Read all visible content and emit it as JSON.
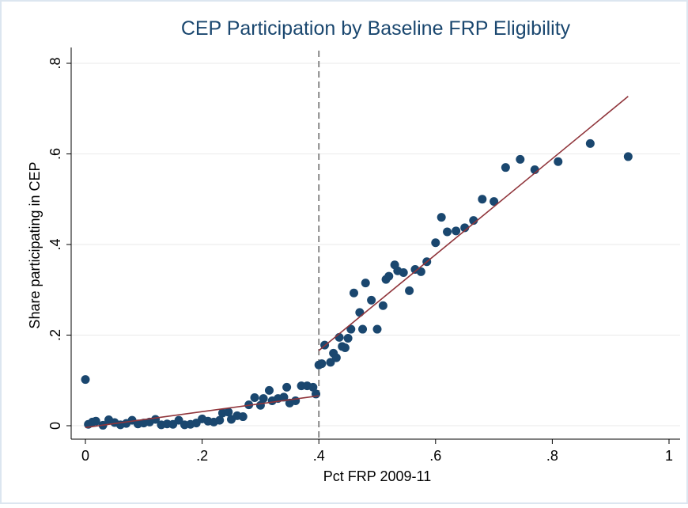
{
  "chart_data": {
    "type": "scatter",
    "title": "CEP Participation by Baseline FRP Eligibility",
    "x_label": "Pct FRP 2009-11",
    "y_label": "Share participating in CEP",
    "xlim": [
      0,
      1
    ],
    "ylim": [
      0,
      0.8
    ],
    "xticks": [
      0,
      {
        "value": 0.2,
        "label": ".2"
      },
      {
        "value": 0.4,
        "label": ".4"
      },
      {
        "value": 0.6,
        "label": ".6"
      },
      {
        "value": 0.8,
        "label": ".8"
      },
      1
    ],
    "yticks": [
      0,
      {
        "value": 0.2,
        "label": ".2"
      },
      {
        "value": 0.4,
        "label": ".4"
      },
      {
        "value": 0.6,
        "label": ".6"
      },
      {
        "value": 0.8,
        "label": ".8"
      }
    ],
    "grid": true,
    "reference_line_x": 0.4,
    "series": [
      {
        "color": "#1a476f",
        "x": [
          0.0,
          0.005,
          0.012,
          0.018,
          0.03,
          0.04,
          0.05,
          0.06,
          0.07,
          0.08,
          0.09,
          0.1,
          0.11,
          0.12,
          0.13,
          0.14,
          0.15,
          0.16,
          0.17,
          0.18,
          0.19,
          0.2,
          0.21,
          0.22,
          0.23,
          0.235,
          0.245,
          0.25,
          0.26,
          0.27,
          0.28,
          0.29,
          0.3,
          0.305,
          0.315,
          0.32,
          0.33,
          0.34,
          0.345,
          0.35,
          0.36,
          0.37,
          0.38,
          0.39,
          0.395,
          0.4,
          0.405,
          0.41,
          0.42,
          0.425,
          0.43,
          0.435,
          0.44,
          0.445,
          0.45,
          0.455,
          0.46,
          0.47,
          0.475,
          0.48,
          0.49,
          0.5,
          0.51,
          0.515,
          0.52,
          0.53,
          0.535,
          0.545,
          0.555,
          0.565,
          0.575,
          0.585,
          0.6,
          0.61,
          0.62,
          0.635,
          0.65,
          0.665,
          0.68,
          0.7,
          0.72,
          0.745,
          0.77,
          0.81,
          0.865,
          0.93
        ],
        "values": [
          0.102,
          0.003,
          0.008,
          0.01,
          0.001,
          0.013,
          0.007,
          0.002,
          0.005,
          0.012,
          0.004,
          0.006,
          0.008,
          0.014,
          0.002,
          0.004,
          0.003,
          0.012,
          0.002,
          0.003,
          0.006,
          0.015,
          0.01,
          0.008,
          0.012,
          0.028,
          0.03,
          0.014,
          0.022,
          0.02,
          0.046,
          0.062,
          0.045,
          0.06,
          0.078,
          0.055,
          0.06,
          0.063,
          0.085,
          0.05,
          0.055,
          0.088,
          0.088,
          0.085,
          0.07,
          0.134,
          0.137,
          0.178,
          0.14,
          0.16,
          0.15,
          0.195,
          0.175,
          0.172,
          0.193,
          0.213,
          0.293,
          0.25,
          0.213,
          0.315,
          0.277,
          0.213,
          0.265,
          0.323,
          0.33,
          0.355,
          0.342,
          0.338,
          0.298,
          0.345,
          0.34,
          0.362,
          0.404,
          0.46,
          0.428,
          0.43,
          0.437,
          0.453,
          0.5,
          0.495,
          0.57,
          0.588,
          0.565,
          0.583,
          0.623,
          0.594
        ]
      }
    ],
    "fit_lines": [
      {
        "color": "#90353b",
        "x": [
          0,
          0.4
        ],
        "values": [
          -0.004,
          0.066
        ]
      },
      {
        "color": "#90353b",
        "x": [
          0.4,
          0.93
        ],
        "values": [
          0.166,
          0.727
        ]
      }
    ]
  }
}
